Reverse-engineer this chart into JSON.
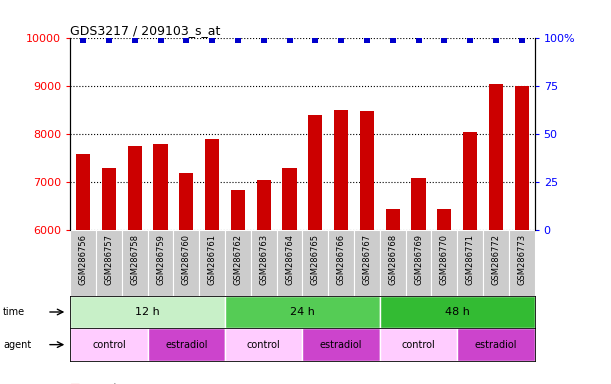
{
  "title": "GDS3217 / 209103_s_at",
  "samples": [
    "GSM286756",
    "GSM286757",
    "GSM286758",
    "GSM286759",
    "GSM286760",
    "GSM286761",
    "GSM286762",
    "GSM286763",
    "GSM286764",
    "GSM286765",
    "GSM286766",
    "GSM286767",
    "GSM286768",
    "GSM286769",
    "GSM286770",
    "GSM286771",
    "GSM286772",
    "GSM286773"
  ],
  "counts": [
    7600,
    7300,
    7750,
    7800,
    7200,
    7900,
    6850,
    7050,
    7300,
    8400,
    8500,
    8480,
    6450,
    7100,
    6450,
    8050,
    9050,
    9000
  ],
  "percentile_ranks": [
    99,
    99,
    99,
    99,
    99,
    99,
    99,
    99,
    99,
    99,
    99,
    99,
    99,
    99,
    99,
    99,
    99,
    99
  ],
  "bar_color": "#cc0000",
  "dot_color": "#0000cc",
  "ylim_left": [
    6000,
    10000
  ],
  "ylim_right": [
    0,
    100
  ],
  "yticks_left": [
    6000,
    7000,
    8000,
    9000,
    10000
  ],
  "yticks_right": [
    0,
    25,
    50,
    75,
    100
  ],
  "right_tick_labels": [
    "0",
    "25",
    "50",
    "75",
    "100%"
  ],
  "time_groups": [
    {
      "label": "12 h",
      "start": 0,
      "end": 6,
      "color": "#c8f0c8"
    },
    {
      "label": "24 h",
      "start": 6,
      "end": 12,
      "color": "#55cc55"
    },
    {
      "label": "48 h",
      "start": 12,
      "end": 18,
      "color": "#33bb33"
    }
  ],
  "agent_groups": [
    {
      "label": "control",
      "start": 0,
      "end": 3,
      "color": "#ffccff"
    },
    {
      "label": "estradiol",
      "start": 3,
      "end": 6,
      "color": "#cc44cc"
    },
    {
      "label": "control",
      "start": 6,
      "end": 9,
      "color": "#ffccff"
    },
    {
      "label": "estradiol",
      "start": 9,
      "end": 12,
      "color": "#cc44cc"
    },
    {
      "label": "control",
      "start": 12,
      "end": 15,
      "color": "#ffccff"
    },
    {
      "label": "estradiol",
      "start": 15,
      "end": 18,
      "color": "#cc44cc"
    }
  ],
  "sample_box_color": "#cccccc",
  "fig_width": 6.11,
  "fig_height": 3.84,
  "dpi": 100
}
